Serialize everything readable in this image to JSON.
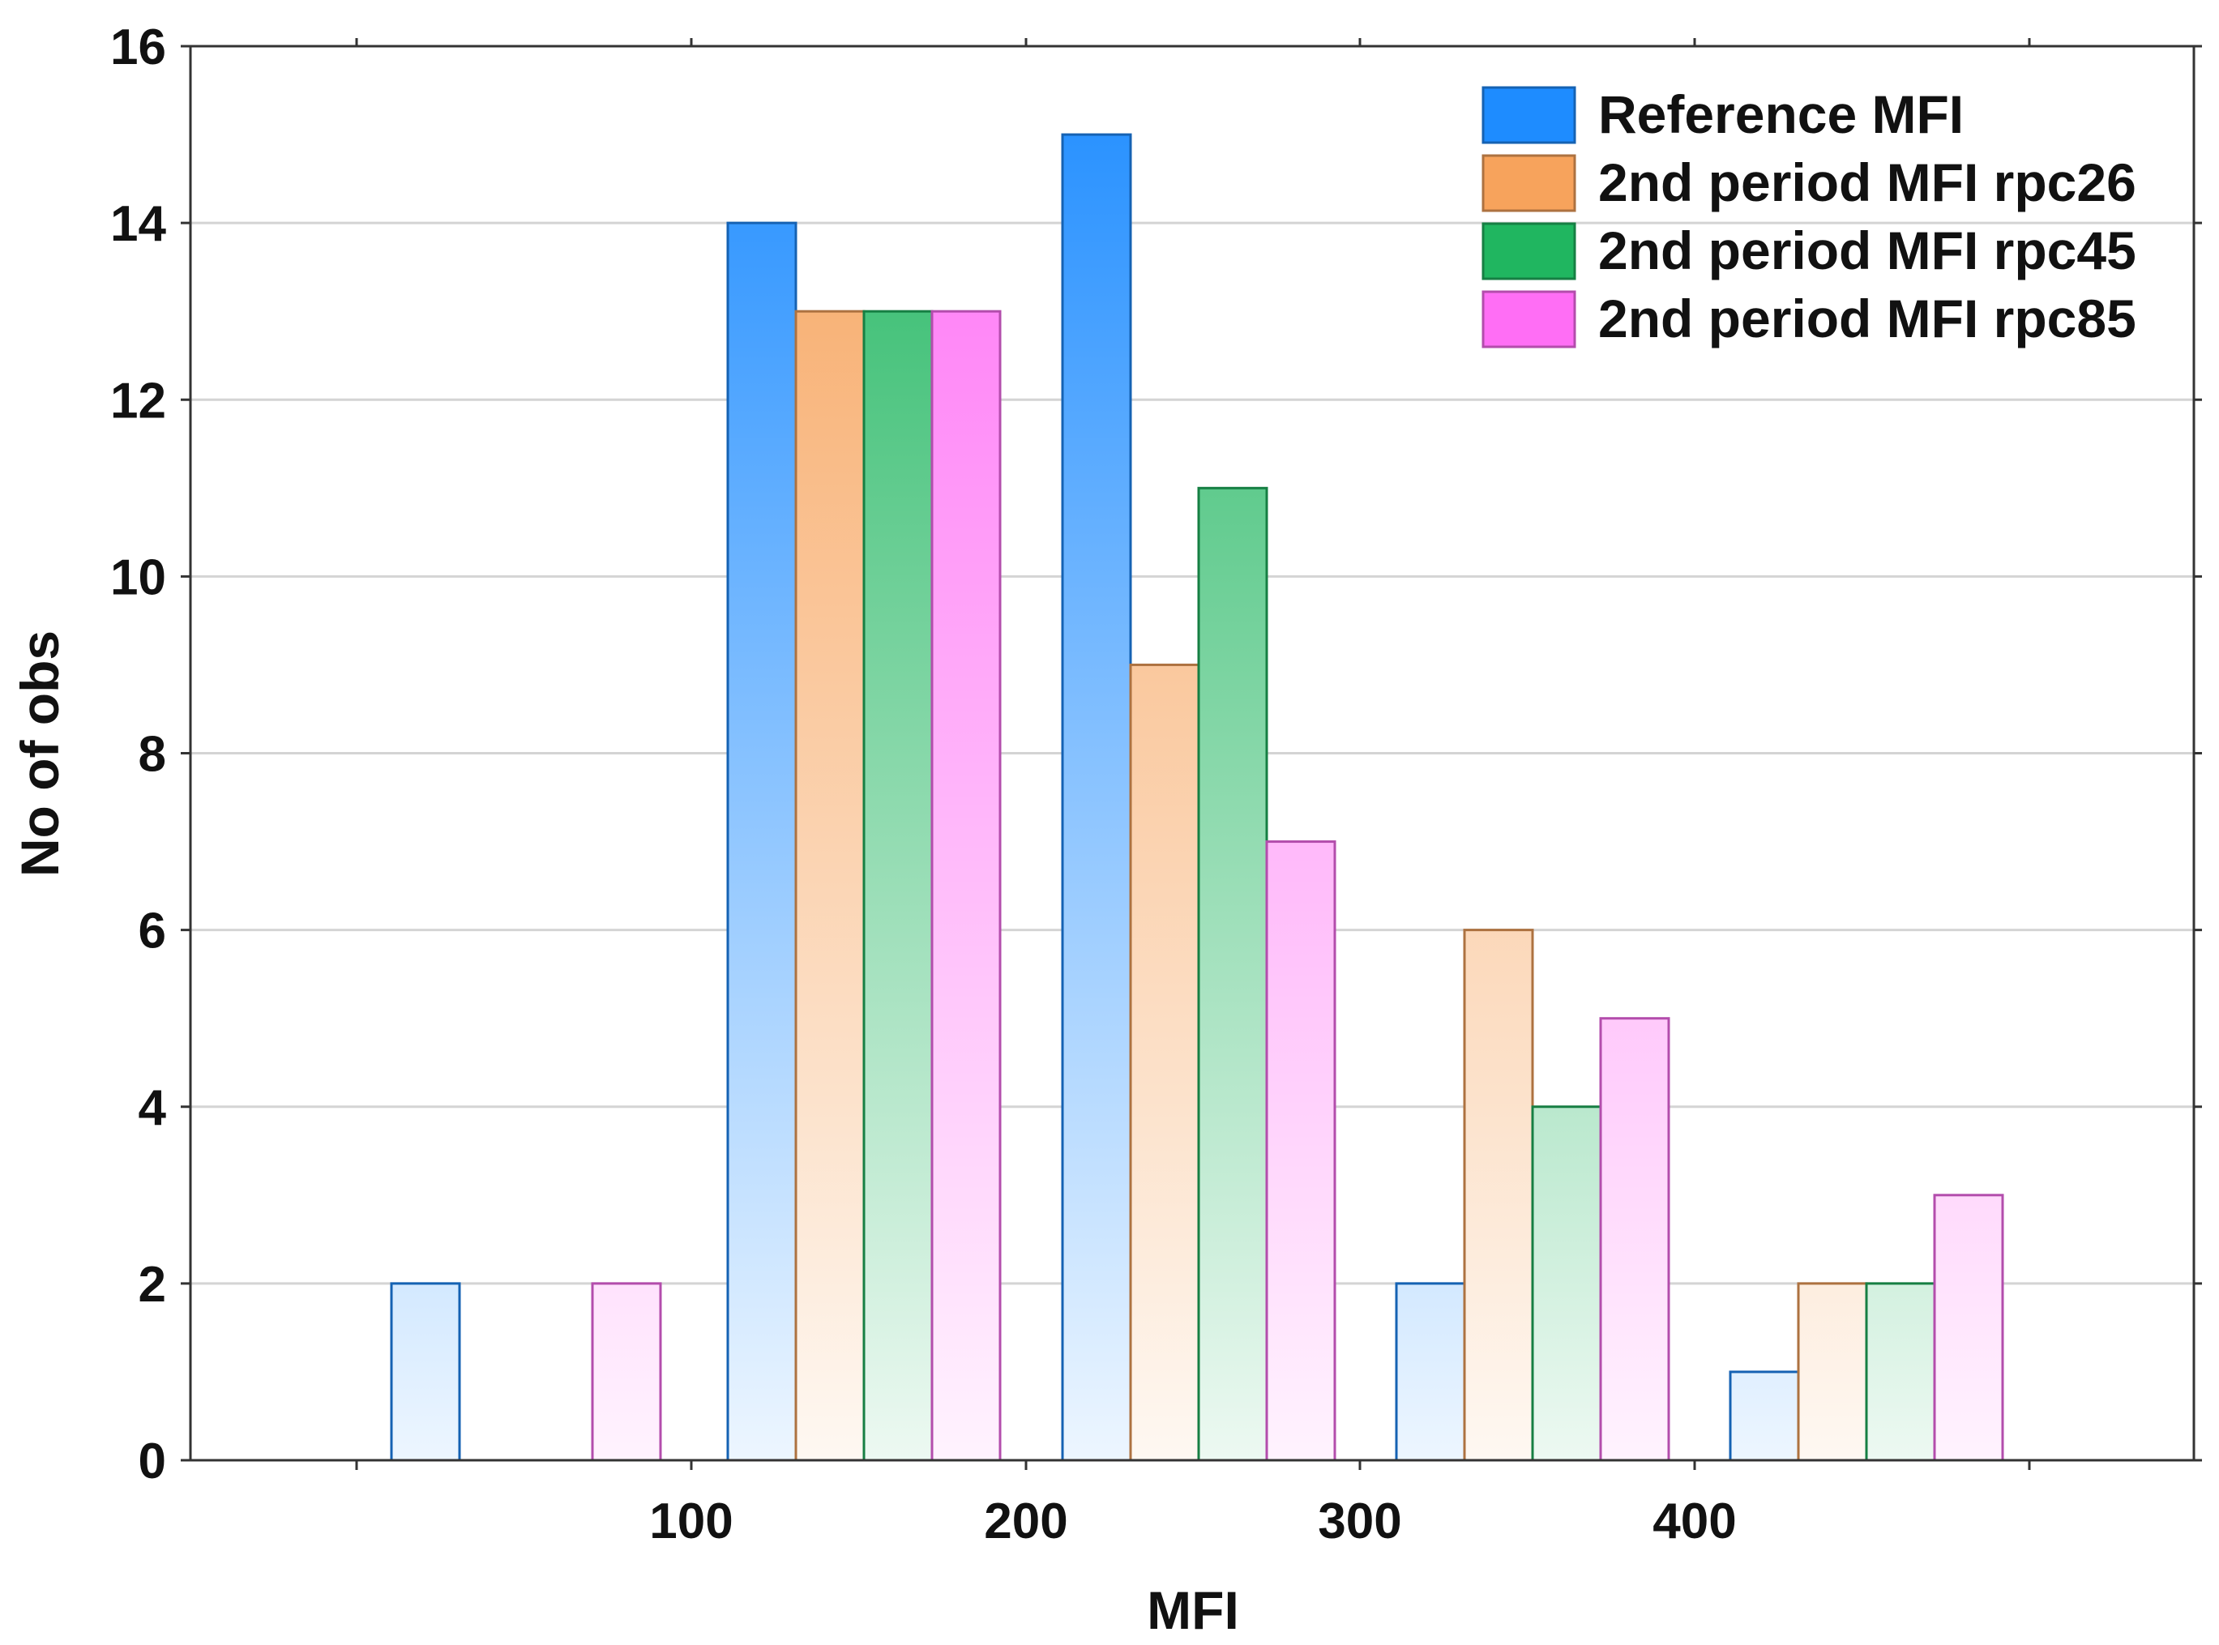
{
  "chart_data": {
    "type": "bar",
    "xlabel": "MFI",
    "ylabel": "No of obs",
    "ylim": [
      0,
      16
    ],
    "yticks": [
      "0",
      "2",
      "4",
      "6",
      "8",
      "10",
      "12",
      "14",
      "16"
    ],
    "x_tick_labels": [
      "100",
      "200",
      "300",
      "400"
    ],
    "grid": true,
    "legend_position": "top-right",
    "series": [
      {
        "name": "Reference MFI",
        "color": "#1E8CFF",
        "values": [
          2,
          0,
          14,
          15,
          2,
          1
        ]
      },
      {
        "name": "2nd period MFI rpc26",
        "color": "#F7A35C",
        "values": [
          0,
          0,
          13,
          9,
          6,
          2
        ]
      },
      {
        "name": "2nd period MFI rpc45",
        "color": "#20B660",
        "values": [
          0,
          0,
          13,
          11,
          4,
          2
        ]
      },
      {
        "name": "2nd period MFI rpc85",
        "color": "#FF6EF5",
        "values": [
          0,
          2,
          13,
          7,
          5,
          3
        ]
      }
    ]
  }
}
